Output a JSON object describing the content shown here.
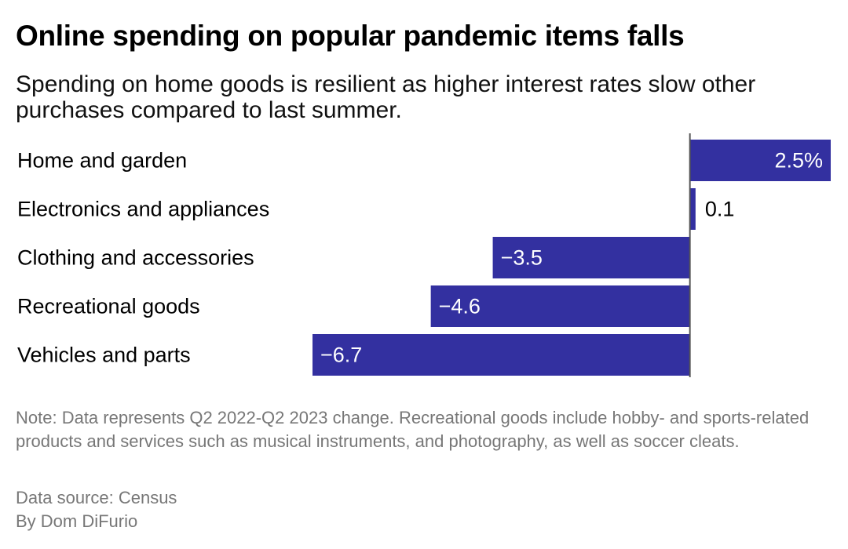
{
  "title": "Online spending on popular pandemic items falls",
  "subtitle": "Spending on home goods is resilient as higher interest rates slow other purchases compared to last summer.",
  "chart_data": {
    "type": "bar",
    "orientation": "horizontal",
    "categories": [
      "Home and garden",
      "Electronics and appliances",
      "Clothing and accessories",
      "Recreational goods",
      "Vehicles and parts"
    ],
    "values": [
      2.5,
      0.1,
      -3.5,
      -4.6,
      -6.7
    ],
    "value_labels": [
      "2.5%",
      "0.1",
      "−3.5",
      "−4.6",
      "−6.7"
    ],
    "unit": "%",
    "xlim": [
      -6.7,
      2.5
    ],
    "bar_color": "#3330a0",
    "zero_line_color": "#555555",
    "grid": false,
    "legend": "none"
  },
  "note": "Note: Data represents Q2 2022-Q2 2023 change. Recreational goods include hobby- and sports-related products and services such as musical instruments, and photography, as well as soccer cleats.",
  "source": "Data source: Census",
  "byline": "By Dom DiFurio",
  "colors": {
    "bar": "#3330a0",
    "label_on_bar": "#ffffff",
    "label_off_bar": "#000000",
    "footer_text": "#777777"
  }
}
